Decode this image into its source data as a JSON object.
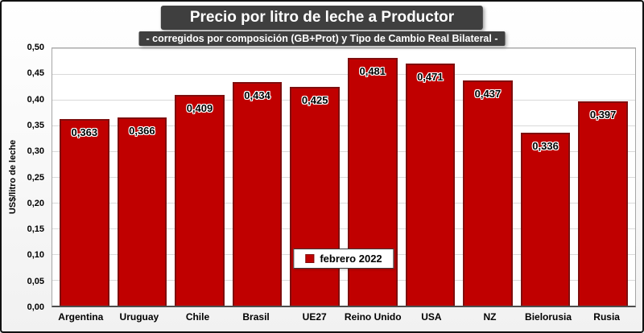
{
  "title": "Precio por litro de leche a Productor",
  "subtitle": "- corregidos por composición (GB+Prot) y Tipo de Cambio Real Bilateral -",
  "ylabel": "US$/litro de leche",
  "legend": {
    "label": "febrero 2022",
    "marker_color": "#c00000"
  },
  "colors": {
    "bar_fill": "#c00000",
    "bar_border": "#7f0e0e",
    "title_bg": "#3f3f3f",
    "title_text": "#ffffff",
    "gridline": "#d9d9d9"
  },
  "chart_data": {
    "type": "bar",
    "title": "Precio por litro de leche a Productor",
    "subtitle": "- corregidos por composición (GB+Prot) y Tipo de Cambio Real Bilateral -",
    "categories": [
      "Argentina",
      "Uruguay",
      "Chile",
      "Brasil",
      "UE27",
      "Reino Unido",
      "USA",
      "NZ",
      "Bielorusia",
      "Rusia"
    ],
    "values": [
      0.363,
      0.366,
      0.409,
      0.434,
      0.425,
      0.481,
      0.471,
      0.437,
      0.336,
      0.397
    ],
    "labels": [
      "0,363",
      "0,366",
      "0,409",
      "0,434",
      "0,425",
      "0,481",
      "0,471",
      "0,437",
      "0,336",
      "0,397"
    ],
    "xlabel": "",
    "ylabel": "US$/litro de leche",
    "ylim": [
      0,
      0.5
    ],
    "yticks": [
      "0,00",
      "0,05",
      "0,10",
      "0,15",
      "0,20",
      "0,25",
      "0,30",
      "0,35",
      "0,40",
      "0,45",
      "0,50"
    ],
    "grid": true,
    "legend_entries": [
      "febrero 2022"
    ],
    "legend_position": "bottom-center-inside"
  }
}
